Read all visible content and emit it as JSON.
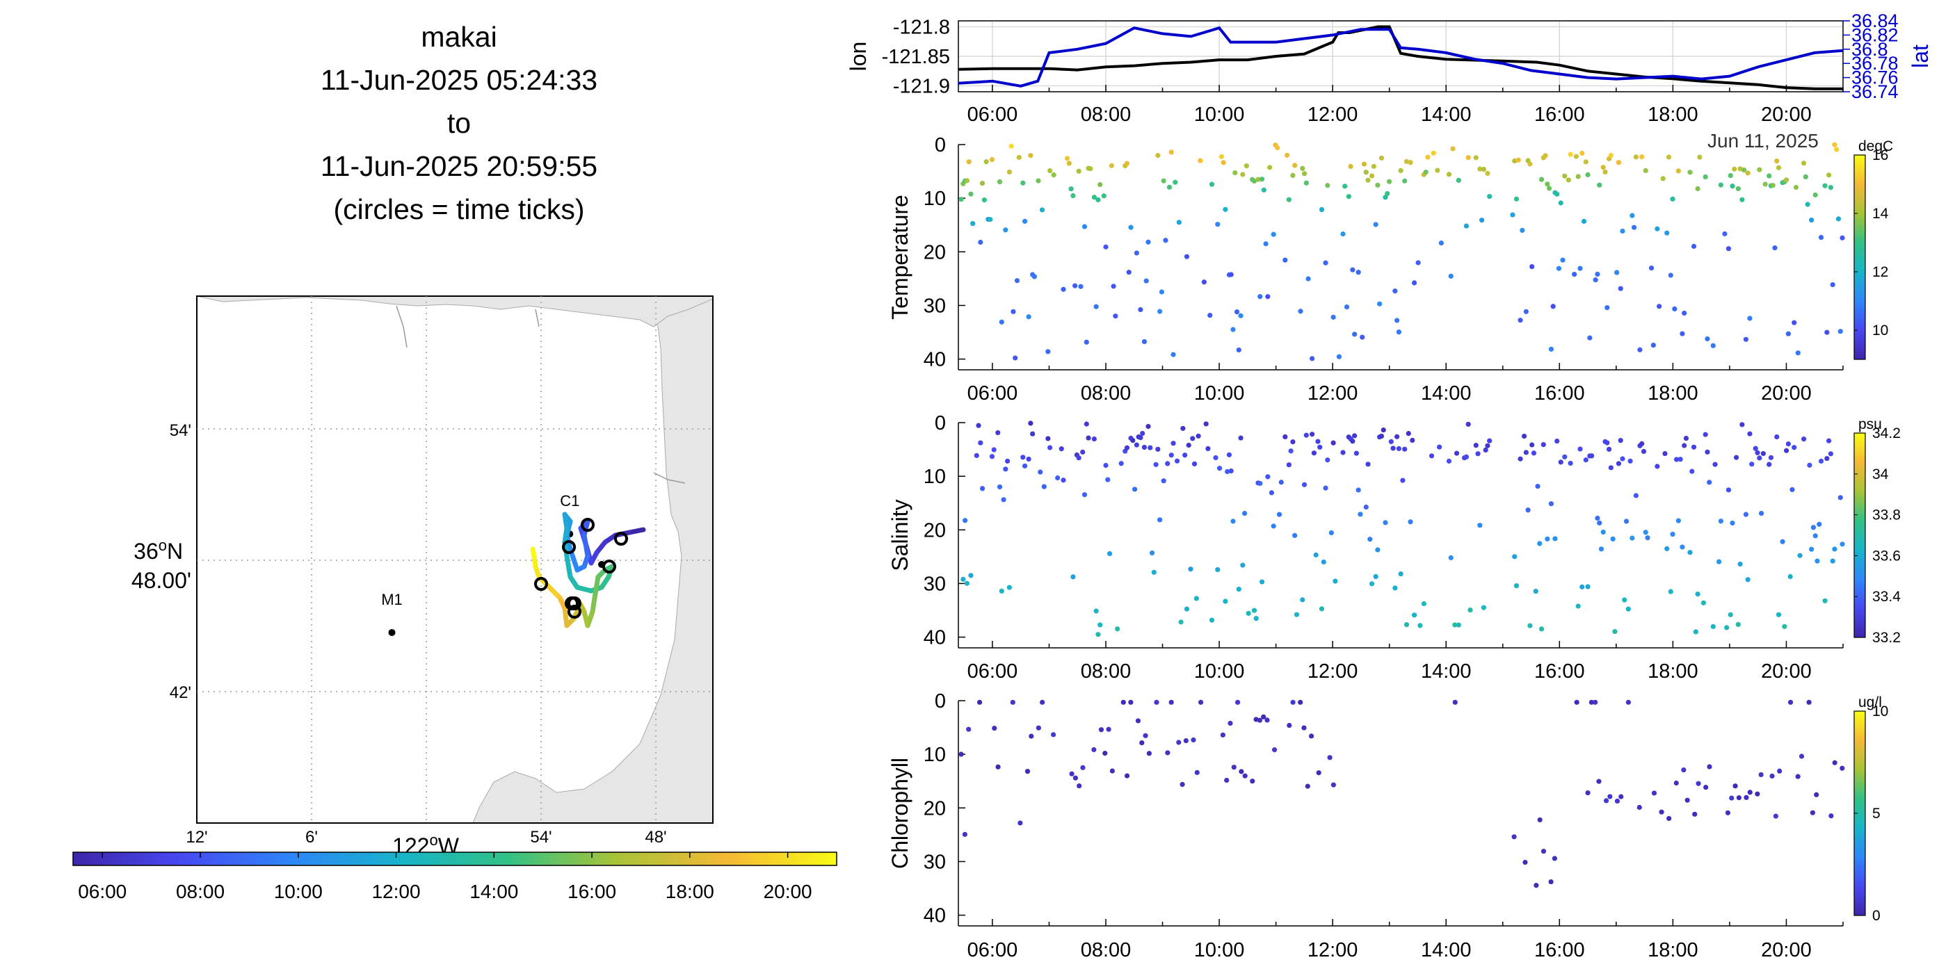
{
  "title": {
    "line1": "makai",
    "line2": "11-Jun-2025 05:24:33",
    "line3": "to",
    "line4": "11-Jun-2025 20:59:55",
    "line5": "(circles = time ticks)"
  },
  "chart_data": [
    {
      "type": "map-track",
      "lat_ticks": [
        "54'",
        "36°N 48.00'",
        "42'"
      ],
      "lon_ticks": [
        "12'",
        "6'",
        "122°W",
        "54'",
        "48'"
      ],
      "stations": [
        {
          "label": "M1",
          "lon": -122.03,
          "lat": 36.745
        },
        {
          "label": "C1",
          "lon": -121.875,
          "lat": 36.82
        }
      ],
      "colorbar_ticks": [
        "06:00",
        "08:00",
        "10:00",
        "12:00",
        "14:00",
        "16:00",
        "18:00",
        "20:00"
      ],
      "colormap": [
        "#3e26a8",
        "#4748f2",
        "#2e87f7",
        "#18b4c9",
        "#32c185",
        "#a7c338",
        "#f5b935",
        "#f9fb15"
      ]
    },
    {
      "type": "line",
      "x_ticks": [
        "06:00",
        "08:00",
        "10:00",
        "12:00",
        "14:00",
        "16:00",
        "18:00",
        "20:00"
      ],
      "xlim": [
        5.4,
        21.0
      ],
      "ylabel_left": "lon",
      "ylabel_right": "lat",
      "yticks_left": [
        "-121.8",
        "-121.85",
        "-121.9"
      ],
      "yticks_right": [
        "36.84",
        "36.82",
        "36.8",
        "36.78",
        "36.76",
        "36.74"
      ],
      "ylim_left": [
        -121.91,
        -121.79
      ],
      "ylim_right": [
        36.74,
        36.84
      ],
      "date_label": "Jun 11, 2025",
      "series": [
        {
          "name": "lon",
          "color": "#000000",
          "x": [
            5.4,
            6.0,
            7.0,
            7.5,
            8.0,
            8.5,
            9.0,
            9.5,
            10.0,
            10.5,
            11.0,
            11.5,
            12.0,
            12.1,
            12.3,
            12.8,
            13.0,
            13.2,
            13.5,
            14.0,
            15.0,
            15.6,
            16.0,
            16.5,
            17.0,
            17.5,
            18.0,
            18.5,
            19.0,
            19.5,
            20.0,
            20.5,
            21.0
          ],
          "y": [
            -121.872,
            -121.871,
            -121.871,
            -121.873,
            -121.868,
            -121.866,
            -121.862,
            -121.86,
            -121.856,
            -121.856,
            -121.85,
            -121.846,
            -121.826,
            -121.81,
            -121.81,
            -121.8,
            -121.8,
            -121.845,
            -121.85,
            -121.855,
            -121.858,
            -121.86,
            -121.865,
            -121.875,
            -121.88,
            -121.885,
            -121.888,
            -121.892,
            -121.895,
            -121.898,
            -121.903,
            -121.905,
            -121.905
          ]
        },
        {
          "name": "lat",
          "color": "#0000cc",
          "x": [
            5.4,
            6.0,
            6.5,
            6.8,
            7.0,
            7.5,
            8.0,
            8.5,
            9.0,
            9.5,
            10.0,
            10.2,
            10.5,
            11.0,
            11.5,
            12.0,
            12.5,
            13.0,
            13.2,
            13.5,
            14.0,
            14.5,
            15.0,
            15.5,
            16.0,
            16.5,
            17.0,
            17.5,
            18.0,
            18.5,
            19.0,
            19.5,
            20.0,
            20.5,
            21.0
          ],
          "y": [
            36.752,
            36.755,
            36.748,
            36.755,
            36.795,
            36.8,
            36.808,
            36.83,
            36.822,
            36.818,
            36.83,
            36.81,
            36.81,
            36.81,
            36.815,
            36.82,
            36.828,
            36.828,
            36.802,
            36.8,
            36.795,
            36.786,
            36.78,
            36.77,
            36.765,
            36.76,
            36.758,
            36.76,
            36.762,
            36.758,
            36.762,
            36.775,
            36.785,
            36.795,
            36.798
          ]
        }
      ]
    },
    {
      "type": "scatter",
      "ylabel": "Temperature",
      "units": "degC",
      "y_ticks": [
        "0",
        "10",
        "20",
        "30",
        "40"
      ],
      "ylim": [
        0,
        42
      ],
      "x_ticks": [
        "06:00",
        "08:00",
        "10:00",
        "12:00",
        "14:00",
        "16:00",
        "18:00",
        "20:00"
      ],
      "xlim": [
        5.4,
        21.0
      ],
      "clim": [
        9,
        16
      ],
      "colorbar_ticks": [
        "16",
        "14",
        "12",
        "10"
      ]
    },
    {
      "type": "scatter",
      "ylabel": "Salinity",
      "units": "psu",
      "y_ticks": [
        "0",
        "10",
        "20",
        "30",
        "40"
      ],
      "ylim": [
        0,
        42
      ],
      "x_ticks": [
        "06:00",
        "08:00",
        "10:00",
        "12:00",
        "14:00",
        "16:00",
        "18:00",
        "20:00"
      ],
      "xlim": [
        5.4,
        21.0
      ],
      "clim": [
        33.2,
        34.2
      ],
      "colorbar_ticks": [
        "34.2",
        "34",
        "33.8",
        "33.6",
        "33.4",
        "33.2"
      ]
    },
    {
      "type": "scatter",
      "ylabel": "Chlorophyll",
      "units": "ug/l",
      "y_ticks": [
        "0",
        "10",
        "20",
        "30",
        "40"
      ],
      "ylim": [
        0,
        42
      ],
      "x_ticks": [
        "06:00",
        "08:00",
        "10:00",
        "12:00",
        "14:00",
        "16:00",
        "18:00",
        "20:00"
      ],
      "xlim": [
        5.4,
        21.0
      ],
      "clim": [
        0,
        10
      ],
      "colorbar_ticks": [
        "10",
        "5",
        "0"
      ]
    }
  ]
}
